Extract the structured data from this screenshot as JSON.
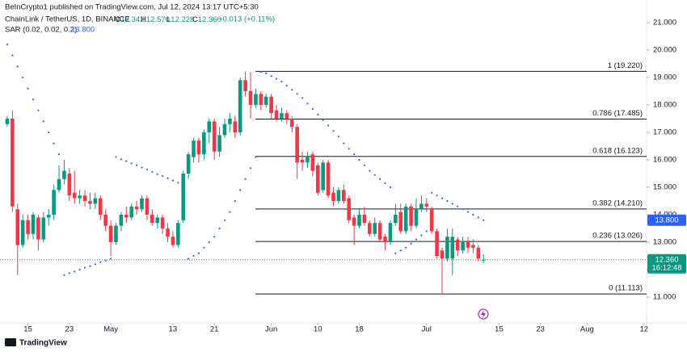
{
  "chart_data": {
    "type": "candlestick",
    "header": {
      "publisher": "BeInCrypto1 published on TradingView.com, Jul 12, 2024 13:17 UTC+5:30",
      "symbol": "ChainLink / TetherUS, 1D, BINANCE",
      "ohlc": [
        {
          "key": "O",
          "label": "12.343"
        },
        {
          "key": "H",
          "label": "12.570"
        },
        {
          "key": "L",
          "label": "12.228"
        },
        {
          "key": "C",
          "label": "12.360"
        }
      ],
      "change": "+0.013 (+0.11%)",
      "indicator": "SAR (0.02, 0.02, 0.2)",
      "indicator_value": "13.800"
    },
    "open": [
      17.3,
      17.5,
      14.2,
      12.9,
      13.8,
      13.3,
      13.9,
      13.1,
      13.9,
      14.0,
      14.9,
      15.3,
      15.5,
      14.8,
      14.6,
      14.7,
      14.5,
      14.4,
      14.6,
      14.0,
      13.6,
      13.0,
      13.6,
      14.0,
      13.9,
      14.3,
      14.2,
      14.6,
      14.0,
      13.7,
      13.9,
      13.5,
      13.2,
      12.9,
      13.8,
      15.5,
      16.1,
      16.7,
      16.2,
      17.0,
      17.4,
      16.3,
      16.9,
      17.3,
      17.4,
      17.0,
      18.9,
      18.5,
      18.0,
      18.4,
      18.0,
      18.3,
      17.8,
      17.5,
      17.7,
      17.5,
      17.2,
      16.0,
      15.9,
      16.2,
      15.8,
      14.9,
      15.9,
      14.8,
      14.5,
      14.9,
      14.6,
      13.9,
      13.6,
      14.0,
      13.7,
      13.3,
      13.7,
      13.2,
      13.0,
      13.7,
      14.1,
      13.4,
      14.3,
      13.6,
      14.2,
      14.4,
      14.2,
      13.4,
      12.7,
      12.4,
      12.4,
      13.1,
      12.7,
      13.0,
      12.9,
      12.8,
      12.343
    ],
    "high": [
      17.6,
      17.8,
      14.4,
      14.0,
      14.0,
      14.1,
      14.0,
      14.1,
      14.2,
      15.1,
      15.8,
      16.0,
      15.7,
      15.6,
      14.9,
      14.9,
      14.8,
      14.8,
      14.7,
      14.2,
      13.8,
      13.7,
      14.1,
      14.3,
      14.4,
      14.5,
      14.7,
      14.7,
      14.2,
      14.0,
      14.0,
      13.7,
      13.4,
      13.8,
      15.6,
      16.3,
      16.8,
      16.8,
      17.1,
      17.5,
      17.5,
      17.2,
      17.5,
      17.7,
      17.6,
      19.0,
      19.22,
      19.2,
      18.6,
      18.5,
      18.4,
      18.4,
      18.0,
      17.9,
      17.8,
      17.6,
      17.3,
      16.3,
      16.3,
      16.3,
      15.9,
      16.0,
      16.0,
      15.0,
      15.0,
      15.1,
      14.7,
      14.0,
      14.2,
      14.3,
      13.8,
      13.9,
      13.8,
      13.3,
      13.8,
      14.4,
      14.4,
      14.4,
      14.4,
      14.6,
      14.7,
      14.6,
      14.3,
      13.5,
      12.8,
      13.5,
      13.5,
      13.2,
      13.2,
      13.2,
      13.1,
      12.9,
      12.57
    ],
    "low": [
      17.2,
      14.1,
      11.8,
      12.8,
      13.1,
      13.1,
      12.7,
      13.0,
      13.6,
      13.8,
      14.8,
      15.1,
      14.5,
      14.4,
      14.4,
      14.3,
      14.2,
      14.2,
      13.8,
      13.4,
      12.5,
      12.9,
      13.4,
      13.7,
      13.8,
      14.0,
      14.1,
      13.8,
      13.6,
      13.5,
      13.3,
      13.0,
      12.8,
      12.8,
      13.7,
      15.3,
      15.9,
      15.9,
      16.0,
      16.6,
      16.0,
      16.1,
      16.8,
      17.0,
      16.8,
      16.9,
      18.3,
      17.5,
      17.9,
      17.8,
      17.9,
      17.5,
      17.4,
      17.4,
      17.3,
      17.0,
      15.3,
      15.6,
      15.7,
      15.4,
      14.7,
      14.8,
      14.6,
      14.3,
      14.4,
      14.4,
      13.7,
      12.9,
      13.5,
      13.6,
      13.2,
      13.2,
      13.0,
      12.7,
      12.9,
      13.6,
      13.3,
      13.3,
      13.4,
      13.5,
      14.1,
      14.1,
      13.3,
      12.4,
      11.1,
      12.3,
      11.8,
      12.5,
      12.6,
      12.6,
      12.6,
      12.3,
      12.228
    ],
    "close": [
      17.5,
      14.3,
      12.9,
      13.8,
      13.3,
      14.0,
      13.1,
      13.9,
      14.0,
      14.9,
      15.3,
      15.6,
      14.7,
      14.6,
      14.7,
      14.5,
      14.4,
      14.6,
      14.0,
      13.6,
      13.0,
      13.6,
      14.0,
      13.9,
      14.3,
      14.2,
      14.6,
      14.0,
      13.7,
      13.9,
      13.5,
      13.2,
      12.9,
      13.7,
      15.5,
      16.2,
      16.7,
      16.2,
      17.0,
      17.4,
      16.3,
      16.9,
      17.3,
      17.5,
      17.0,
      18.9,
      18.5,
      18.0,
      18.4,
      18.0,
      18.3,
      17.7,
      17.5,
      17.7,
      17.5,
      17.2,
      15.9,
      15.9,
      16.1,
      15.6,
      14.8,
      15.9,
      14.7,
      14.5,
      14.9,
      14.5,
      13.8,
      13.6,
      14.0,
      13.7,
      13.3,
      13.7,
      13.1,
      13.0,
      13.7,
      14.0,
      13.4,
      14.3,
      13.6,
      14.2,
      14.4,
      14.3,
      13.4,
      12.5,
      12.4,
      13.2,
      13.2,
      12.7,
      13.0,
      12.8,
      12.8,
      12.4,
      12.36
    ],
    "sar": [
      20.2,
      19.8,
      19.4,
      19.0,
      18.6,
      18.2,
      17.8,
      17.4,
      17.0,
      16.6,
      16.2,
      11.8,
      11.87,
      11.93,
      12.0,
      12.07,
      12.13,
      12.2,
      12.27,
      12.33,
      12.4,
      16.1,
      16.02,
      15.95,
      15.87,
      15.8,
      15.72,
      15.64,
      15.56,
      15.48,
      15.41,
      15.33,
      15.25,
      15.17,
      15.1,
      12.4,
      12.5,
      12.6,
      12.8,
      13.0,
      13.2,
      13.5,
      13.8,
      14.1,
      14.5,
      14.9,
      15.3,
      15.7,
      16.1,
      19.2,
      19.15,
      19.05,
      18.95,
      18.85,
      18.7,
      18.55,
      18.4,
      18.25,
      18.05,
      17.85,
      17.65,
      17.45,
      17.25,
      17.05,
      16.85,
      16.6,
      16.4,
      16.2,
      16.0,
      15.8,
      15.6,
      15.45,
      15.3,
      15.15,
      15.0,
      12.6,
      12.7,
      12.8,
      12.95,
      13.1,
      13.25,
      13.4,
      14.8,
      14.7,
      14.6,
      14.5,
      14.4,
      14.3,
      14.2,
      14.1,
      14.0,
      13.9,
      13.8
    ],
    "xlim": [
      -1.4,
      123.5
    ],
    "xticks": [
      {
        "value": 4,
        "label": "15"
      },
      {
        "value": 12,
        "label": "23"
      },
      {
        "value": 20,
        "label": "May"
      },
      {
        "value": 32,
        "label": "13"
      },
      {
        "value": 40,
        "label": "21"
      },
      {
        "value": 51,
        "label": "Jun"
      },
      {
        "value": 60,
        "label": "10"
      },
      {
        "value": 68,
        "label": "18"
      },
      {
        "value": 81,
        "label": "Jul"
      },
      {
        "value": 95,
        "label": "15"
      },
      {
        "value": 103,
        "label": "23"
      },
      {
        "value": 112,
        "label": "Aug"
      },
      {
        "value": 123,
        "label": "12"
      }
    ],
    "ylim": [
      10.06,
      21.82
    ],
    "yticks": [
      {
        "value": 11,
        "label": "11.000"
      },
      {
        "value": 12,
        "label": "12.000"
      },
      {
        "value": 13,
        "label": "13.000"
      },
      {
        "value": 14,
        "label": "14.000"
      },
      {
        "value": 15,
        "label": "15.000"
      },
      {
        "value": 16,
        "label": "16.000"
      },
      {
        "value": 17,
        "label": "17.000"
      },
      {
        "value": 18,
        "label": "18.000"
      },
      {
        "value": 19,
        "label": "19.000"
      },
      {
        "value": 20,
        "label": "20.000"
      },
      {
        "value": 21,
        "label": "21.000"
      }
    ],
    "fib_levels": [
      {
        "value": 19.22,
        "label": "1 (19.220)"
      },
      {
        "value": 17.485,
        "label": "0.786 (17.485)"
      },
      {
        "value": 16.123,
        "label": "0.618 (16.123)"
      },
      {
        "value": 14.21,
        "label": "0.382 (14.210)"
      },
      {
        "value": 13.026,
        "label": "0.236 (13.026)"
      },
      {
        "value": 11.113,
        "label": "0 (11.113)"
      }
    ],
    "price_labels": {
      "sar": {
        "value": 13.8,
        "label": "13.800"
      },
      "last": {
        "value": 12.36,
        "label": "12.360",
        "countdown": "16:12:48"
      }
    },
    "colors": {
      "up": "#089981",
      "down": "#f23645",
      "sar": "#2962ff"
    },
    "footer": "TradingView"
  }
}
